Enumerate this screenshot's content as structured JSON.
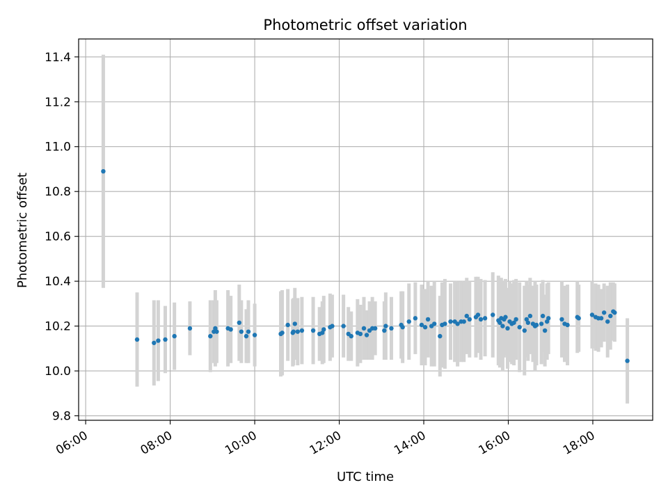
{
  "chart_data": {
    "type": "scatter",
    "title": "Photometric offset variation",
    "xlabel": "UTC time",
    "ylabel": "Photometric offset",
    "x_format": "HH:MM",
    "xlim": [
      "05:50",
      "19:25"
    ],
    "ylim": [
      9.78,
      11.48
    ],
    "x_ticks": [
      "06:00",
      "08:00",
      "10:00",
      "12:00",
      "14:00",
      "16:00",
      "18:00"
    ],
    "y_ticks": [
      9.8,
      10.0,
      10.2,
      10.4,
      10.6,
      10.8,
      11.0,
      11.2,
      11.4
    ],
    "grid": true,
    "colors": {
      "marker": "#1f77b4",
      "errorbar": "#d3d3d3",
      "grid": "#b0b0b0",
      "axes": "#000000"
    },
    "series": [
      {
        "x": [
          "06:25",
          "07:13",
          "07:37",
          "07:43",
          "07:53",
          "08:06",
          "08:28",
          "08:57",
          "09:02",
          "09:04",
          "09:06",
          "09:22",
          "09:26",
          "09:38",
          "09:41",
          "09:48",
          "09:51",
          "10:00",
          "10:37",
          "10:39",
          "10:47",
          "10:54",
          "10:55",
          "10:57",
          "11:01",
          "11:07",
          "11:23",
          "11:32",
          "11:36",
          "11:38",
          "11:47",
          "11:50",
          "12:06",
          "12:13",
          "12:17",
          "12:26",
          "12:30",
          "12:35",
          "12:39",
          "12:43",
          "12:47",
          "12:51",
          "13:04",
          "13:06",
          "13:14",
          "13:28",
          "13:30",
          "13:39",
          "13:48",
          "13:57",
          "14:02",
          "14:06",
          "14:11",
          "14:15",
          "14:23",
          "14:26",
          "14:30",
          "14:38",
          "14:44",
          "14:48",
          "14:53",
          "14:57",
          "15:01",
          "15:05",
          "15:14",
          "15:17",
          "15:21",
          "15:27",
          "15:38",
          "15:46",
          "15:48",
          "15:50",
          "15:52",
          "15:54",
          "15:56",
          "15:59",
          "16:02",
          "16:05",
          "16:08",
          "16:11",
          "16:16",
          "16:23",
          "16:26",
          "16:28",
          "16:31",
          "16:35",
          "16:38",
          "16:40",
          "16:47",
          "16:49",
          "16:52",
          "16:55",
          "16:57",
          "17:16",
          "17:20",
          "17:24",
          "17:38",
          "17:40",
          "17:59",
          "18:04",
          "18:08",
          "18:12",
          "18:16",
          "18:21",
          "18:25",
          "18:29",
          "18:31",
          "18:49"
        ],
        "y": [
          10.89,
          10.14,
          10.125,
          10.135,
          10.14,
          10.155,
          10.19,
          10.155,
          10.175,
          10.19,
          10.175,
          10.19,
          10.185,
          10.215,
          10.175,
          10.155,
          10.175,
          10.16,
          10.165,
          10.17,
          10.205,
          10.17,
          10.175,
          10.21,
          10.175,
          10.18,
          10.18,
          10.165,
          10.17,
          10.185,
          10.195,
          10.2,
          10.2,
          10.165,
          10.155,
          10.17,
          10.165,
          10.19,
          10.16,
          10.18,
          10.19,
          10.19,
          10.18,
          10.2,
          10.19,
          10.205,
          10.195,
          10.22,
          10.235,
          10.205,
          10.195,
          10.23,
          10.2,
          10.21,
          10.155,
          10.205,
          10.21,
          10.22,
          10.22,
          10.21,
          10.22,
          10.22,
          10.245,
          10.23,
          10.24,
          10.25,
          10.23,
          10.235,
          10.25,
          10.225,
          10.215,
          10.235,
          10.2,
          10.23,
          10.24,
          10.19,
          10.22,
          10.21,
          10.215,
          10.23,
          10.195,
          10.18,
          10.23,
          10.215,
          10.245,
          10.21,
          10.2,
          10.205,
          10.21,
          10.245,
          10.18,
          10.22,
          10.235,
          10.23,
          10.21,
          10.205,
          10.24,
          10.235,
          10.25,
          10.24,
          10.235,
          10.235,
          10.26,
          10.22,
          10.245,
          10.265,
          10.26,
          10.045
        ],
        "yerr": [
          0.52,
          0.21,
          0.19,
          0.18,
          0.15,
          0.15,
          0.12,
          0.16,
          0.14,
          0.17,
          0.14,
          0.17,
          0.15,
          0.17,
          0.14,
          0.12,
          0.14,
          0.14,
          0.19,
          0.19,
          0.16,
          0.15,
          0.15,
          0.16,
          0.15,
          0.15,
          0.15,
          0.12,
          0.14,
          0.15,
          0.15,
          0.14,
          0.14,
          0.12,
          0.11,
          0.15,
          0.13,
          0.14,
          0.11,
          0.13,
          0.14,
          0.12,
          0.13,
          0.15,
          0.14,
          0.15,
          0.16,
          0.17,
          0.16,
          0.18,
          0.17,
          0.17,
          0.18,
          0.19,
          0.18,
          0.19,
          0.2,
          0.17,
          0.18,
          0.19,
          0.18,
          0.18,
          0.17,
          0.17,
          0.18,
          0.17,
          0.18,
          0.17,
          0.19,
          0.2,
          0.2,
          0.18,
          0.2,
          0.17,
          0.17,
          0.18,
          0.18,
          0.18,
          0.19,
          0.18,
          0.2,
          0.2,
          0.17,
          0.17,
          0.17,
          0.17,
          0.2,
          0.18,
          0.18,
          0.16,
          0.16,
          0.17,
          0.16,
          0.17,
          0.17,
          0.18,
          0.16,
          0.15,
          0.15,
          0.15,
          0.15,
          0.13,
          0.13,
          0.16,
          0.15,
          0.13,
          0.13,
          0.19
        ]
      }
    ]
  }
}
